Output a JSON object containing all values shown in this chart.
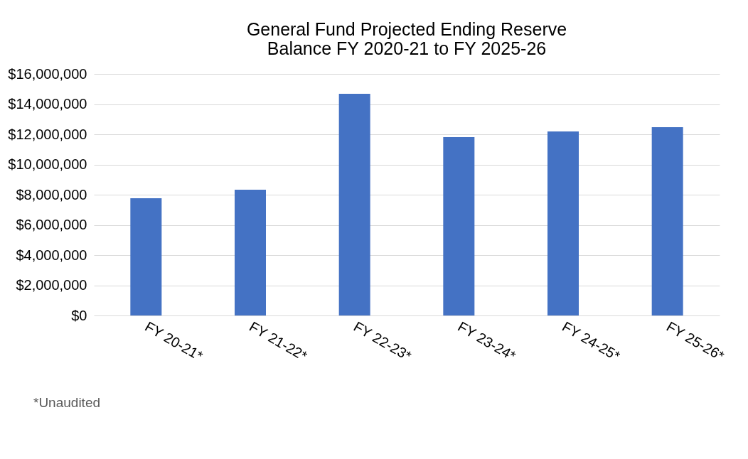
{
  "chart_data": {
    "type": "bar",
    "title": "General Fund Projected Ending Reserve\nBalance FY 2020-21 to FY 2025-26",
    "categories": [
      "FY 20-21*",
      "FY 21-22*",
      "FY 22-23*",
      "FY 23-24*",
      "FY 24-25*",
      "FY 25-26*"
    ],
    "values": [
      7760000,
      8330000,
      14680000,
      11810000,
      12190000,
      12470000
    ],
    "color": "#4472c4",
    "ylim": [
      0,
      16000000
    ],
    "yticks": [
      {
        "value": 0,
        "label": "$0"
      },
      {
        "value": 2000000,
        "label": "$2,000,000"
      },
      {
        "value": 4000000,
        "label": "$4,000,000"
      },
      {
        "value": 6000000,
        "label": "$6,000,000"
      },
      {
        "value": 8000000,
        "label": "$8,000,000"
      },
      {
        "value": 10000000,
        "label": "$10,000,000"
      },
      {
        "value": 12000000,
        "label": "$12,000,000"
      },
      {
        "value": 14000000,
        "label": "$14,000,000"
      },
      {
        "value": 16000000,
        "label": "$16,000,000"
      }
    ],
    "grid": "y",
    "annotations": [
      "*Unaudited"
    ]
  }
}
